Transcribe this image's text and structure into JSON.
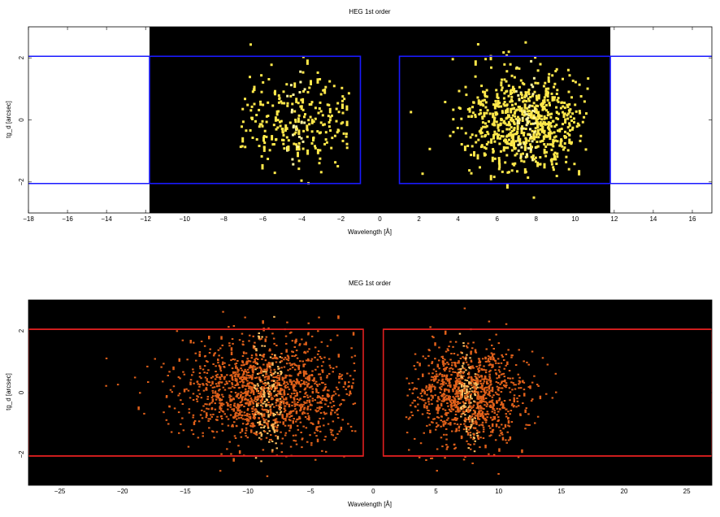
{
  "chart_data": [
    {
      "type": "heatmap",
      "title": "HEG 1st order",
      "xlabel": "Wavelength [Å]",
      "ylabel": "tg_d [arcsec]",
      "xlim": [
        -18,
        17
      ],
      "ylim": [
        -3,
        3
      ],
      "x_ticks": [
        -18,
        -16,
        -14,
        -12,
        -10,
        -8,
        -6,
        -4,
        -2,
        0,
        2,
        4,
        6,
        8,
        10,
        12,
        14,
        16
      ],
      "x_tick_labels": [
        "−18",
        "−16",
        "−14",
        "−12",
        "−10",
        "−8",
        "−6",
        "−4",
        "−2",
        "0",
        "2",
        "4",
        "6",
        "8",
        "10",
        "12",
        "14",
        "16"
      ],
      "y_ticks": [
        -2,
        0,
        2
      ],
      "y_tick_labels": [
        "−2",
        "0",
        "2"
      ],
      "background_region": [
        -11.8,
        11.8
      ],
      "background_color": "#000000",
      "event_color": "#ffe84a",
      "event_color_dense": "#fff7a0",
      "source_regions": [
        {
          "x": [
            -11.8,
            -1.0
          ],
          "y": [
            -2.05,
            2.05
          ]
        },
        {
          "x": [
            1.0,
            11.8
          ],
          "y": [
            -2.05,
            2.05
          ]
        }
      ],
      "region_extent_x": [
        -18,
        17
      ],
      "region_color": "#1a1aff",
      "event_clusters": [
        {
          "center": -4.3,
          "width": 1.5,
          "xmin": -7.3,
          "xmax": -1.6,
          "ysigma": 0.75,
          "count": 260
        },
        {
          "center": 7.4,
          "width": 1.5,
          "xmin": 1.5,
          "xmax": 10.6,
          "ysigma": 0.8,
          "count": 720
        }
      ]
    },
    {
      "type": "heatmap",
      "title": "MEG 1st order",
      "xlabel": "Wavelength [Å]",
      "ylabel": "tg_d [arcsec]",
      "xlim": [
        -27.5,
        27
      ],
      "ylim": [
        -3,
        3
      ],
      "x_ticks": [
        -25,
        -20,
        -15,
        -10,
        -5,
        0,
        5,
        10,
        15,
        20,
        25
      ],
      "x_tick_labels": [
        "−25",
        "−20",
        "−15",
        "−10",
        "−5",
        "0",
        "5",
        "10",
        "15",
        "20",
        "25"
      ],
      "y_ticks": [
        -2,
        0,
        2
      ],
      "y_tick_labels": [
        "−2",
        "0",
        "2"
      ],
      "background_region": [
        -27.5,
        27
      ],
      "background_color": "#000000",
      "event_color": "#e0601a",
      "event_color_dense": "#ffc060",
      "source_regions": [
        {
          "x": [
            -27.5,
            -0.8
          ],
          "y": [
            -2.05,
            2.05
          ]
        },
        {
          "x": [
            0.8,
            27
          ],
          "y": [
            -2.05,
            2.05
          ]
        }
      ],
      "region_extent_x": [
        -27.5,
        27
      ],
      "region_color": "#e02020",
      "event_clusters": [
        {
          "center": -8.5,
          "width": 3.2,
          "xmin": -21.5,
          "xmax": -1.5,
          "ysigma": 0.85,
          "count": 1500
        },
        {
          "center": 7.5,
          "width": 2.2,
          "xmin": 2.5,
          "xmax": 15.5,
          "ysigma": 0.8,
          "count": 1100
        }
      ]
    }
  ]
}
